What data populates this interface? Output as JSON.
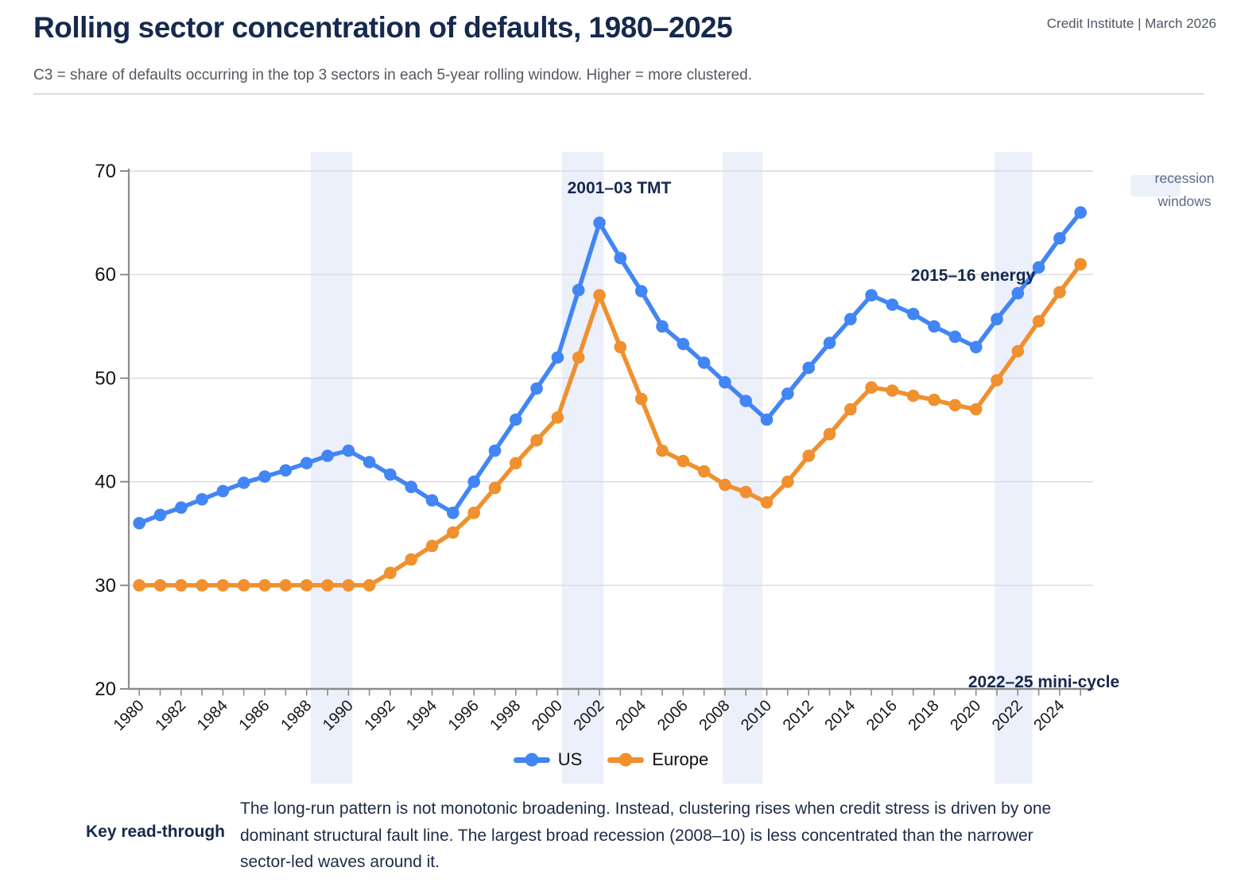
{
  "header": {
    "title": "Rolling sector concentration of defaults, 1980–2025",
    "source": "Credit Institute | March 2026"
  },
  "subtitle": "C3 = share of defaults occurring in the top 3 sectors in each 5-year rolling window. Higher = more clustered.",
  "chart_data": {
    "type": "line",
    "x": [
      1980,
      1981,
      1982,
      1983,
      1984,
      1985,
      1986,
      1987,
      1988,
      1989,
      1990,
      1991,
      1992,
      1993,
      1994,
      1995,
      1996,
      1997,
      1998,
      1999,
      2000,
      2001,
      2002,
      2003,
      2004,
      2005,
      2006,
      2007,
      2008,
      2009,
      2010,
      2011,
      2012,
      2013,
      2014,
      2015,
      2016,
      2017,
      2018,
      2019,
      2020,
      2021,
      2022,
      2023,
      2024,
      2025
    ],
    "xticks": [
      1980,
      1982,
      1984,
      1986,
      1988,
      1990,
      1992,
      1994,
      1996,
      1998,
      2000,
      2002,
      2004,
      2006,
      2008,
      2010,
      2012,
      2014,
      2016,
      2018,
      2020,
      2022,
      2024
    ],
    "x_range": [
      1979.5,
      2025.6
    ],
    "ylim": [
      20,
      70
    ],
    "yticks": [
      20,
      30,
      40,
      50,
      60,
      70
    ],
    "grid": true,
    "legend_position": "bottom-center",
    "series": [
      {
        "name": "US",
        "color": "#4285F4",
        "values": [
          36,
          36.8,
          37.5,
          38.3,
          39.1,
          39.9,
          40.5,
          41.1,
          41.8,
          42.5,
          43,
          41.9,
          40.7,
          39.5,
          38.2,
          37,
          40,
          43,
          46,
          49,
          52,
          58.5,
          65,
          61.6,
          58.4,
          55,
          53.3,
          51.5,
          49.6,
          47.8,
          46,
          48.5,
          51,
          53.4,
          55.7,
          58,
          57.1,
          56.2,
          55,
          54,
          53,
          55.7,
          58.2,
          60.7,
          63.5,
          66
        ]
      },
      {
        "name": "Europe",
        "color": "#F0902E",
        "values": [
          30,
          30,
          30,
          30,
          30,
          30,
          30,
          30,
          30,
          30,
          30,
          30,
          31.2,
          32.5,
          33.8,
          35.1,
          37,
          39.4,
          41.8,
          44,
          46.2,
          52,
          58,
          53,
          48,
          43,
          42,
          41,
          39.7,
          39,
          38,
          40,
          42.5,
          44.6,
          47,
          49.1,
          48.8,
          48.3,
          47.9,
          47.4,
          47,
          49.8,
          52.6,
          55.5,
          58.3,
          61
        ]
      }
    ],
    "recession_windows": [
      [
        1988.2,
        1990.2
      ],
      [
        2000.2,
        2002.2
      ],
      [
        2007.9,
        2009.8
      ],
      [
        2020.9,
        2022.7
      ]
    ],
    "recession_window_color": "#ECF0FA",
    "recession_legend_label": "recession\nwindows",
    "annotations": [
      {
        "id": "tmt",
        "text": "2001–03 TMT"
      },
      {
        "id": "energy",
        "text": "2015–16 energy"
      },
      {
        "id": "minicycle",
        "text": "2022–25 mini-cycle"
      }
    ]
  },
  "key": {
    "label": "Key read-through",
    "text": "The long-run pattern is not monotonic broadening. Instead, clustering rises when credit stress is driven by one\ndominant structural fault line. The largest broad recession (2008–10) is less concentrated than the narrower\nsector-led waves around it."
  }
}
